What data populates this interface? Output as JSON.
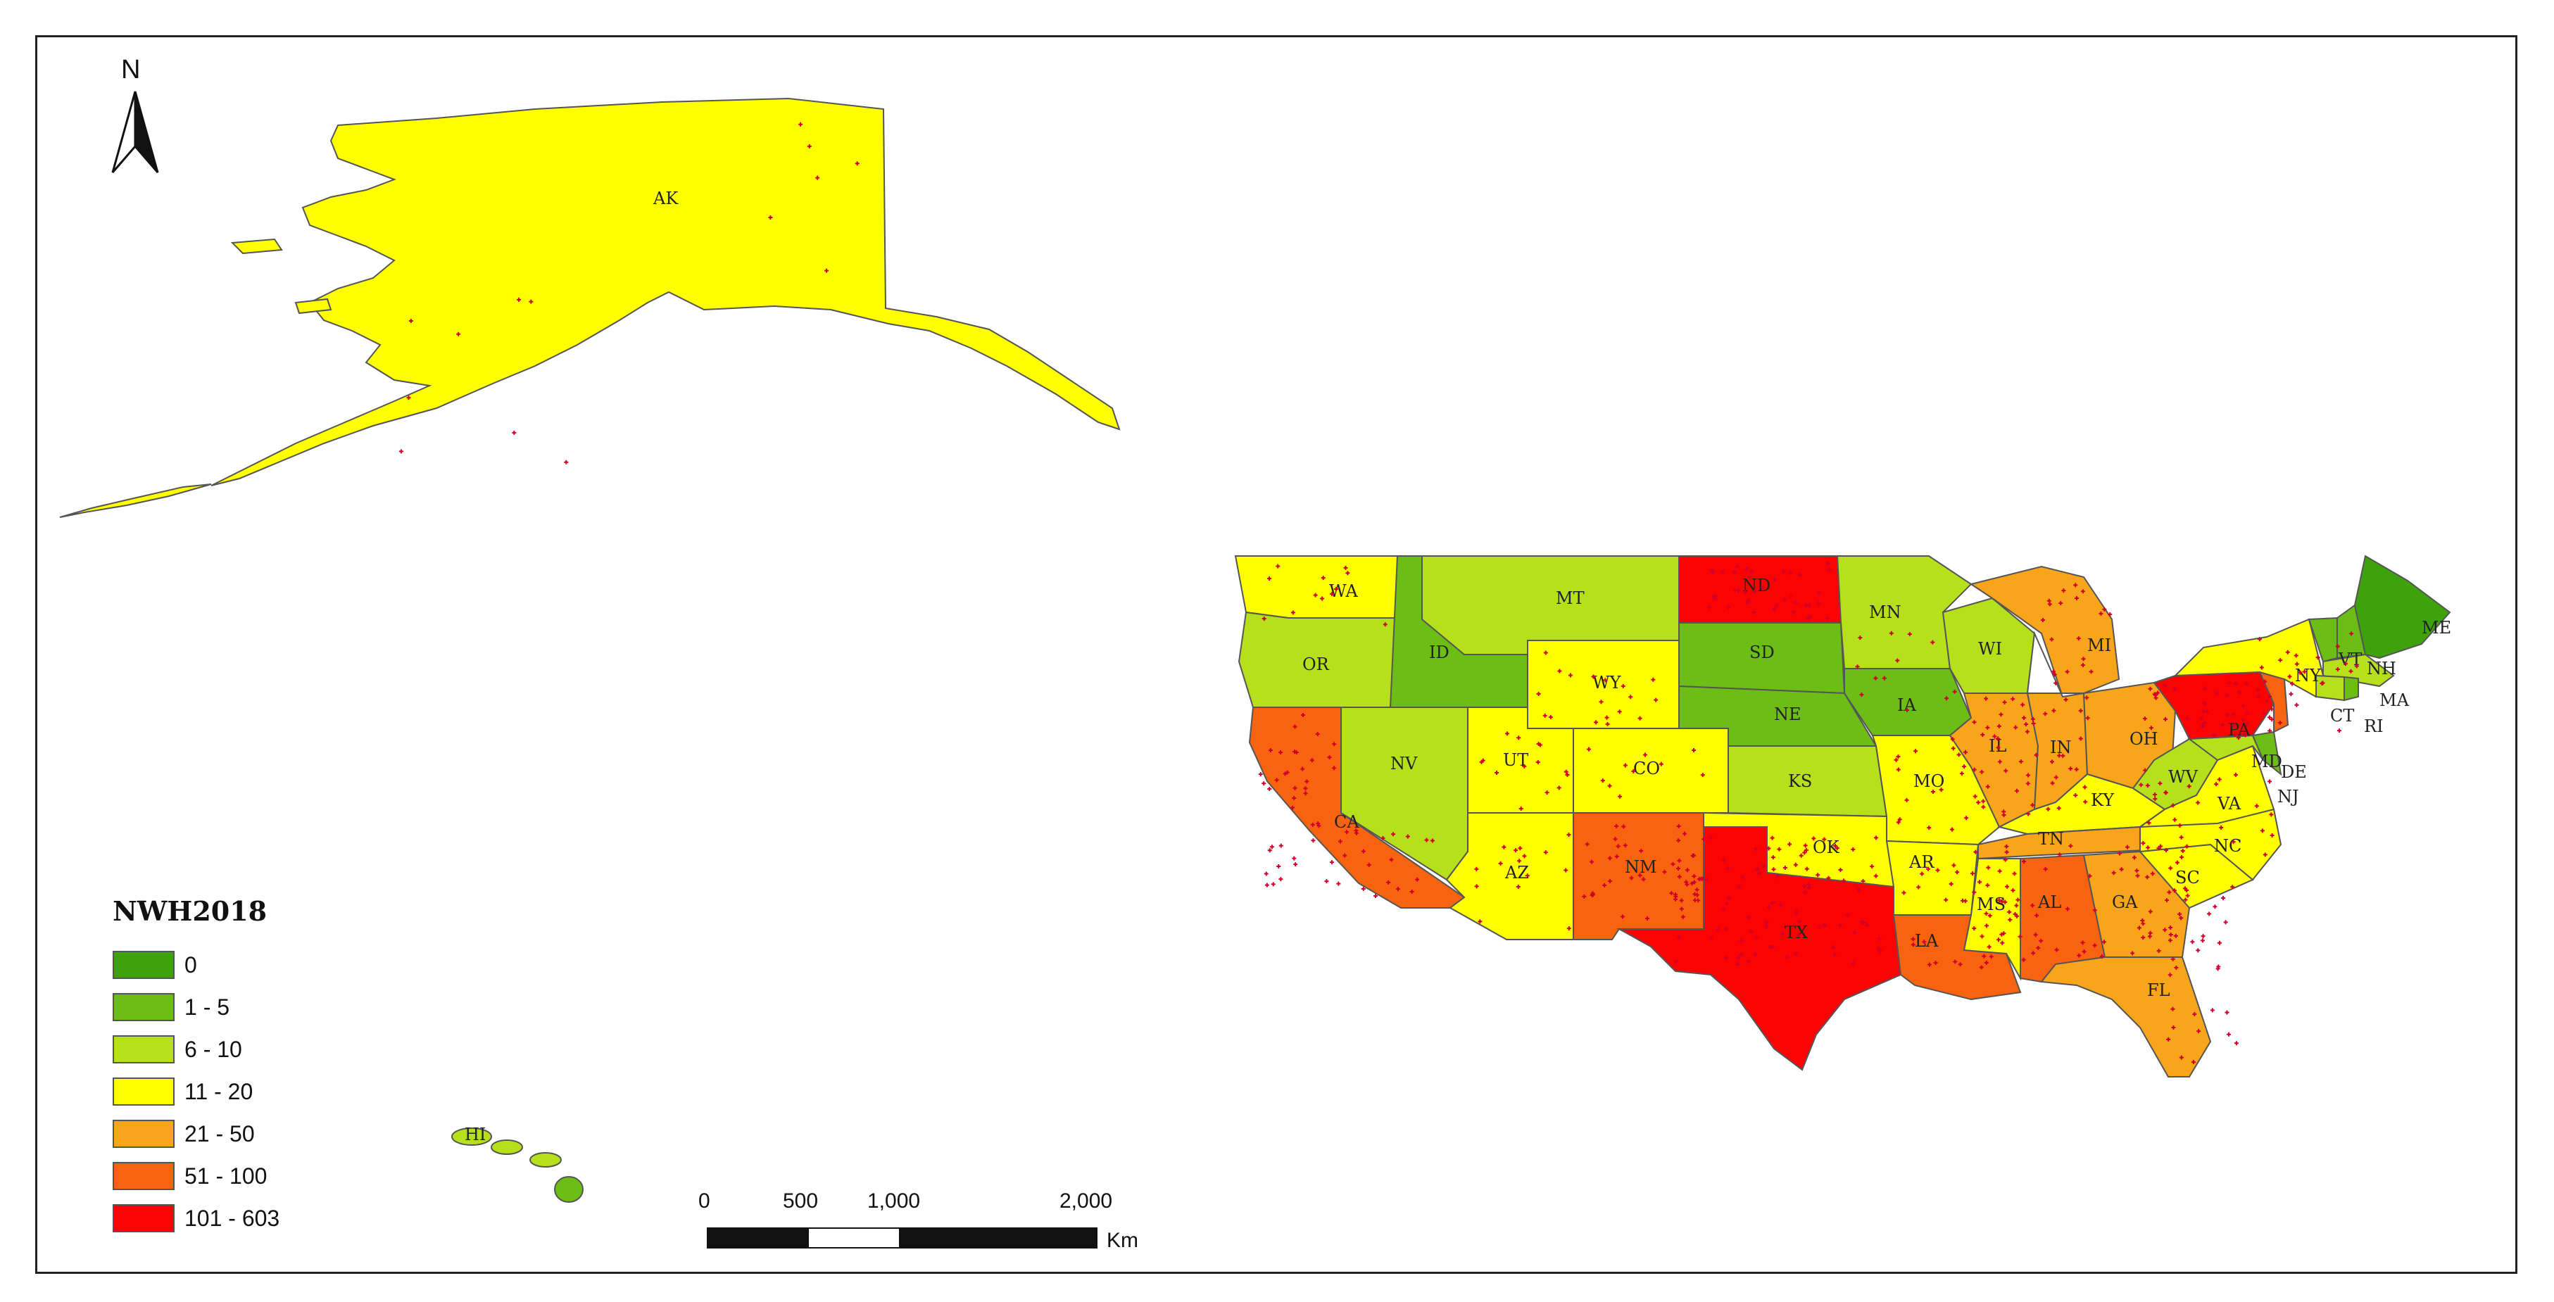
{
  "north_arrow": {
    "label": "N",
    "icon": "north-arrow-icon"
  },
  "legend": {
    "title": "NWH2018",
    "classes": [
      {
        "label": "0",
        "color": "#3ea20d"
      },
      {
        "label": "1 - 5",
        "color": "#6cbd16"
      },
      {
        "label": "6 - 10",
        "color": "#b6e01c"
      },
      {
        "label": "11 - 20",
        "color": "#ffff00"
      },
      {
        "label": "21 - 50",
        "color": "#f9a51b"
      },
      {
        "label": "51 - 100",
        "color": "#f8630f"
      },
      {
        "label": "101 - 603",
        "color": "#fc0303"
      }
    ]
  },
  "scale_bar": {
    "ticks": [
      "0",
      "500",
      "1,000",
      "2,000"
    ],
    "unit": "Km"
  },
  "point_color": "#d1002a",
  "states": [
    {
      "label": "AK",
      "class": "11 - 20"
    },
    {
      "label": "WA",
      "class": "11 - 20"
    },
    {
      "label": "OR",
      "class": "6 - 10"
    },
    {
      "label": "CA",
      "class": "51 - 100"
    },
    {
      "label": "ID",
      "class": "1 - 5"
    },
    {
      "label": "NV",
      "class": "6 - 10"
    },
    {
      "label": "MT",
      "class": "6 - 10"
    },
    {
      "label": "WY",
      "class": "11 - 20"
    },
    {
      "label": "UT",
      "class": "11 - 20"
    },
    {
      "label": "CO",
      "class": "11 - 20"
    },
    {
      "label": "AZ",
      "class": "11 - 20"
    },
    {
      "label": "NM",
      "class": "51 - 100"
    },
    {
      "label": "ND",
      "class": "101 - 603"
    },
    {
      "label": "SD",
      "class": "1 - 5"
    },
    {
      "label": "NE",
      "class": "1 - 5"
    },
    {
      "label": "KS",
      "class": "6 - 10"
    },
    {
      "label": "OK",
      "class": "11 - 20"
    },
    {
      "label": "TX",
      "class": "101 - 603"
    },
    {
      "label": "MN",
      "class": "6 - 10"
    },
    {
      "label": "IA",
      "class": "1 - 5"
    },
    {
      "label": "MO",
      "class": "11 - 20"
    },
    {
      "label": "AR",
      "class": "11 - 20"
    },
    {
      "label": "LA",
      "class": "51 - 100"
    },
    {
      "label": "WI",
      "class": "6 - 10"
    },
    {
      "label": "IL",
      "class": "21 - 50"
    },
    {
      "label": "MS",
      "class": "11 - 20"
    },
    {
      "label": "MI",
      "class": "21 - 50"
    },
    {
      "label": "IN",
      "class": "21 - 50"
    },
    {
      "label": "KY",
      "class": "11 - 20"
    },
    {
      "label": "TN",
      "class": "21 - 50"
    },
    {
      "label": "AL",
      "class": "51 - 100"
    },
    {
      "label": "OH",
      "class": "21 - 50"
    },
    {
      "label": "GA",
      "class": "21 - 50"
    },
    {
      "label": "FL",
      "class": "21 - 50"
    },
    {
      "label": "WV",
      "class": "6 - 10"
    },
    {
      "label": "VA",
      "class": "11 - 20"
    },
    {
      "label": "NC",
      "class": "11 - 20"
    },
    {
      "label": "SC",
      "class": "11 - 20"
    },
    {
      "label": "PA",
      "class": "101 - 603"
    },
    {
      "label": "NY",
      "class": "11 - 20"
    },
    {
      "label": "MD",
      "class": "6 - 10"
    },
    {
      "label": "DE",
      "class": "1 - 5"
    },
    {
      "label": "NJ",
      "class": "51 - 100"
    },
    {
      "label": "VT",
      "class": "1 - 5"
    },
    {
      "label": "NH",
      "class": "1 - 5"
    },
    {
      "label": "ME",
      "class": "0"
    },
    {
      "label": "MA",
      "class": "6 - 10"
    },
    {
      "label": "CT",
      "class": "6 - 10"
    },
    {
      "label": "RI",
      "class": "1 - 5"
    },
    {
      "label": "HI",
      "class": "6 - 10"
    }
  ]
}
